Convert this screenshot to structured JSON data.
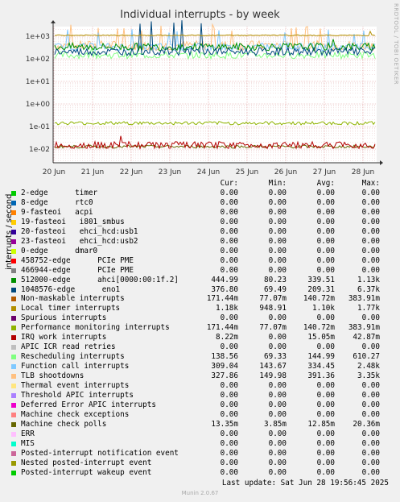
{
  "header": {
    "title": "Individual interrupts - by week",
    "side_label": "RRDTOOL / TOBI OETIKER",
    "footer_last_update": "Last update: Sat Jun 28 19:56:45 2025",
    "footer_munin": "Munin 2.0.67"
  },
  "legend_columns": [
    "Cur:",
    "Min:",
    "Avg:",
    "Max:"
  ],
  "chart_data": {
    "type": "line",
    "title": "Individual interrupts - by week",
    "ylabel": "interrupts / second",
    "y_scale": "log",
    "ylim": [
      0.005,
      3000
    ],
    "y_ticks": [
      "1e-02",
      "1e-01",
      "1e+00",
      "1e+01",
      "1e+02",
      "1e+03"
    ],
    "x_ticks": [
      "20 Jun",
      "21 Jun",
      "22 Jun",
      "23 Jun",
      "24 Jun",
      "25 Jun",
      "26 Jun",
      "27 Jun",
      "28 Jun"
    ],
    "grid": true,
    "series": [
      {
        "name": "2-edge      timer",
        "color": "#00cc00",
        "cur": "0.00",
        "min": "0.00",
        "avg": "0.00",
        "max": "0.00"
      },
      {
        "name": "8-edge      rtc0",
        "color": "#0066b3",
        "cur": "0.00",
        "min": "0.00",
        "avg": "0.00",
        "max": "0.00"
      },
      {
        "name": "9-fasteoi   acpi",
        "color": "#ff8000",
        "cur": "0.00",
        "min": "0.00",
        "avg": "0.00",
        "max": "0.00"
      },
      {
        "name": "19-fasteoi   i801_smbus",
        "color": "#ffcc00",
        "cur": "0.00",
        "min": "0.00",
        "avg": "0.00",
        "max": "0.00"
      },
      {
        "name": "20-fasteoi   ehci_hcd:usb1",
        "color": "#330099",
        "cur": "0.00",
        "min": "0.00",
        "avg": "0.00",
        "max": "0.00"
      },
      {
        "name": "23-fasteoi   ehci_hcd:usb2",
        "color": "#990099",
        "cur": "0.00",
        "min": "0.00",
        "avg": "0.00",
        "max": "0.00"
      },
      {
        "name": "0-edge      dmar0",
        "color": "#ccff00",
        "cur": "0.00",
        "min": "0.00",
        "avg": "0.00",
        "max": "0.00"
      },
      {
        "name": "458752-edge      PCIe PME",
        "color": "#ff0000",
        "cur": "0.00",
        "min": "0.00",
        "avg": "0.00",
        "max": "0.00"
      },
      {
        "name": "466944-edge      PCIe PME",
        "color": "#808080",
        "cur": "0.00",
        "min": "0.00",
        "avg": "0.00",
        "max": "0.00"
      },
      {
        "name": "512000-edge      ahci[0000:00:1f.2]",
        "color": "#008f00",
        "cur": "444.99",
        "min": "80.23",
        "avg": "339.51",
        "max": "1.13k"
      },
      {
        "name": "1048576-edge      eno1",
        "color": "#00487d",
        "cur": "376.80",
        "min": "69.49",
        "avg": "209.31",
        "max": "6.37k"
      },
      {
        "name": "Non-maskable interrupts",
        "color": "#b35a00",
        "cur": "171.44m",
        "min": "77.07m",
        "avg": "140.72m",
        "max": "383.91m"
      },
      {
        "name": "Local timer interrupts",
        "color": "#b38f00",
        "cur": "1.18k",
        "min": "948.91",
        "avg": "1.10k",
        "max": "1.77k"
      },
      {
        "name": "Spurious interrupts",
        "color": "#6b006b",
        "cur": "0.00",
        "min": "0.00",
        "avg": "0.00",
        "max": "0.00"
      },
      {
        "name": "Performance monitoring interrupts",
        "color": "#8fb300",
        "cur": "171.44m",
        "min": "77.07m",
        "avg": "140.72m",
        "max": "383.91m"
      },
      {
        "name": "IRQ work interrupts",
        "color": "#b30000",
        "cur": "8.22m",
        "min": "0.00",
        "avg": "15.05m",
        "max": "42.87m"
      },
      {
        "name": "APIC ICR read retries",
        "color": "#bebebe",
        "cur": "0.00",
        "min": "0.00",
        "avg": "0.00",
        "max": "0.00"
      },
      {
        "name": "Rescheduling interrupts",
        "color": "#80ff80",
        "cur": "138.56",
        "min": "69.33",
        "avg": "144.99",
        "max": "610.27"
      },
      {
        "name": "Function call interrupts",
        "color": "#80c9ff",
        "cur": "309.04",
        "min": "143.67",
        "avg": "334.45",
        "max": "2.48k"
      },
      {
        "name": "TLB shootdowns",
        "color": "#ffc080",
        "cur": "327.86",
        "min": "149.98",
        "avg": "391.36",
        "max": "3.35k"
      },
      {
        "name": "Thermal event interrupts",
        "color": "#ffe680",
        "cur": "0.00",
        "min": "0.00",
        "avg": "0.00",
        "max": "0.00"
      },
      {
        "name": "Threshold APIC interrupts",
        "color": "#aa80ff",
        "cur": "0.00",
        "min": "0.00",
        "avg": "0.00",
        "max": "0.00"
      },
      {
        "name": "Deferred Error APIC interrupts",
        "color": "#ee00cc",
        "cur": "0.00",
        "min": "0.00",
        "avg": "0.00",
        "max": "0.00"
      },
      {
        "name": "Machine check exceptions",
        "color": "#ff8080",
        "cur": "0.00",
        "min": "0.00",
        "avg": "0.00",
        "max": "0.00"
      },
      {
        "name": "Machine check polls",
        "color": "#666600",
        "cur": "13.35m",
        "min": "3.85m",
        "avg": "12.85m",
        "max": "20.36m"
      },
      {
        "name": "ERR",
        "color": "#ffbfff",
        "cur": "0.00",
        "min": "0.00",
        "avg": "0.00",
        "max": "0.00"
      },
      {
        "name": "MIS",
        "color": "#00ffcc",
        "cur": "0.00",
        "min": "0.00",
        "avg": "0.00",
        "max": "0.00"
      },
      {
        "name": "Posted-interrupt notification event",
        "color": "#cc6699",
        "cur": "0.00",
        "min": "0.00",
        "avg": "0.00",
        "max": "0.00"
      },
      {
        "name": "Nested posted-interrupt event",
        "color": "#999900",
        "cur": "0.00",
        "min": "0.00",
        "avg": "0.00",
        "max": "0.00"
      },
      {
        "name": "Posted-interrupt wakeup event",
        "color": "#00cc00",
        "cur": "0.00",
        "min": "0.00",
        "avg": "0.00",
        "max": "0.00"
      }
    ]
  }
}
